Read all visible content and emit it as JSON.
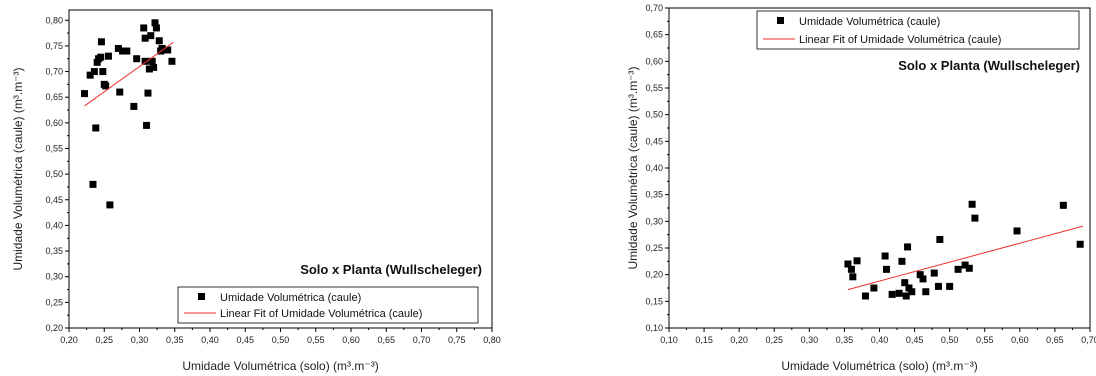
{
  "chart_data": [
    {
      "type": "scatter",
      "title": "",
      "annotation": "Solo x Planta (Wullscheleger)",
      "xlabel": "Umidade Volumétrica (solo) (m³.m⁻³)",
      "ylabel": "Umidade Volumétrica (caule) (m³.m⁻³)",
      "xlim": [
        0.2,
        0.8
      ],
      "ylim": [
        0.2,
        0.82
      ],
      "xticks": [
        "0,20",
        "0,25",
        "0,30",
        "0,35",
        "0,40",
        "0,45",
        "0,50",
        "0,55",
        "0,60",
        "0,65",
        "0,70",
        "0,75",
        "0,80"
      ],
      "yticks": [
        "0,20",
        "0,25",
        "0,30",
        "0,35",
        "0,40",
        "0,45",
        "0,50",
        "0,55",
        "0,60",
        "0,65",
        "0,70",
        "0,75",
        "0,80"
      ],
      "legend_position": "bottom-right",
      "series": [
        {
          "name": "Umidade Volumétrica (caule)",
          "marker": "square",
          "color": "#000000",
          "x": [
            0.222,
            0.23,
            0.234,
            0.236,
            0.238,
            0.24,
            0.242,
            0.245,
            0.246,
            0.248,
            0.25,
            0.252,
            0.256,
            0.258,
            0.27,
            0.272,
            0.276,
            0.282,
            0.292,
            0.296,
            0.306,
            0.308,
            0.308,
            0.31,
            0.312,
            0.314,
            0.316,
            0.318,
            0.32,
            0.322,
            0.324,
            0.328,
            0.33,
            0.332,
            0.336,
            0.34,
            0.346
          ],
          "y": [
            0.657,
            0.693,
            0.48,
            0.7,
            0.59,
            0.718,
            0.725,
            0.728,
            0.758,
            0.7,
            0.675,
            0.672,
            0.73,
            0.44,
            0.745,
            0.66,
            0.74,
            0.74,
            0.632,
            0.725,
            0.785,
            0.765,
            0.72,
            0.595,
            0.658,
            0.705,
            0.77,
            0.72,
            0.708,
            0.795,
            0.785,
            0.76,
            0.74,
            0.745,
            0.742,
            0.742,
            0.72
          ]
        },
        {
          "name": "Linear Fit of Umidade Volumétrica (caule)",
          "type": "line",
          "color": "#e8312f",
          "x": [
            0.222,
            0.348
          ],
          "y": [
            0.633,
            0.757
          ]
        }
      ]
    },
    {
      "type": "scatter",
      "title": "",
      "annotation": "Solo x Planta (Wullscheleger)",
      "xlabel": "Umidade Volumétrica (solo) (m³.m⁻³)",
      "ylabel": "Umidade Volumétrica (caule) (m³.m⁻³)",
      "xlim": [
        0.1,
        0.7
      ],
      "ylim": [
        0.1,
        0.7
      ],
      "xticks": [
        "0,10",
        "0,15",
        "0,20",
        "0,25",
        "0,30",
        "0,35",
        "0,40",
        "0,45",
        "0,50",
        "0,55",
        "0,60",
        "0,65",
        "0,70"
      ],
      "yticks": [
        "0,10",
        "0,15",
        "0,20",
        "0,25",
        "0,30",
        "0,35",
        "0,40",
        "0,45",
        "0,50",
        "0,55",
        "0,60",
        "0,65",
        "0,70"
      ],
      "legend_position": "top-right",
      "series": [
        {
          "name": "Umidade Volumétrica (caule)",
          "marker": "square",
          "color": "#000000",
          "x": [
            0.355,
            0.36,
            0.362,
            0.368,
            0.38,
            0.392,
            0.408,
            0.41,
            0.418,
            0.428,
            0.432,
            0.436,
            0.438,
            0.44,
            0.442,
            0.446,
            0.458,
            0.462,
            0.466,
            0.478,
            0.484,
            0.486,
            0.5,
            0.512,
            0.522,
            0.528,
            0.532,
            0.536,
            0.596,
            0.662,
            0.686
          ],
          "y": [
            0.22,
            0.21,
            0.196,
            0.226,
            0.16,
            0.175,
            0.235,
            0.21,
            0.163,
            0.165,
            0.225,
            0.185,
            0.16,
            0.252,
            0.175,
            0.168,
            0.2,
            0.192,
            0.168,
            0.203,
            0.178,
            0.266,
            0.178,
            0.21,
            0.218,
            0.212,
            0.332,
            0.306,
            0.282,
            0.33,
            0.257
          ]
        },
        {
          "name": "Linear Fit of Umidade Volumétrica (caule)",
          "type": "line",
          "color": "#e8312f",
          "x": [
            0.355,
            0.69
          ],
          "y": [
            0.172,
            0.291
          ]
        }
      ]
    }
  ]
}
